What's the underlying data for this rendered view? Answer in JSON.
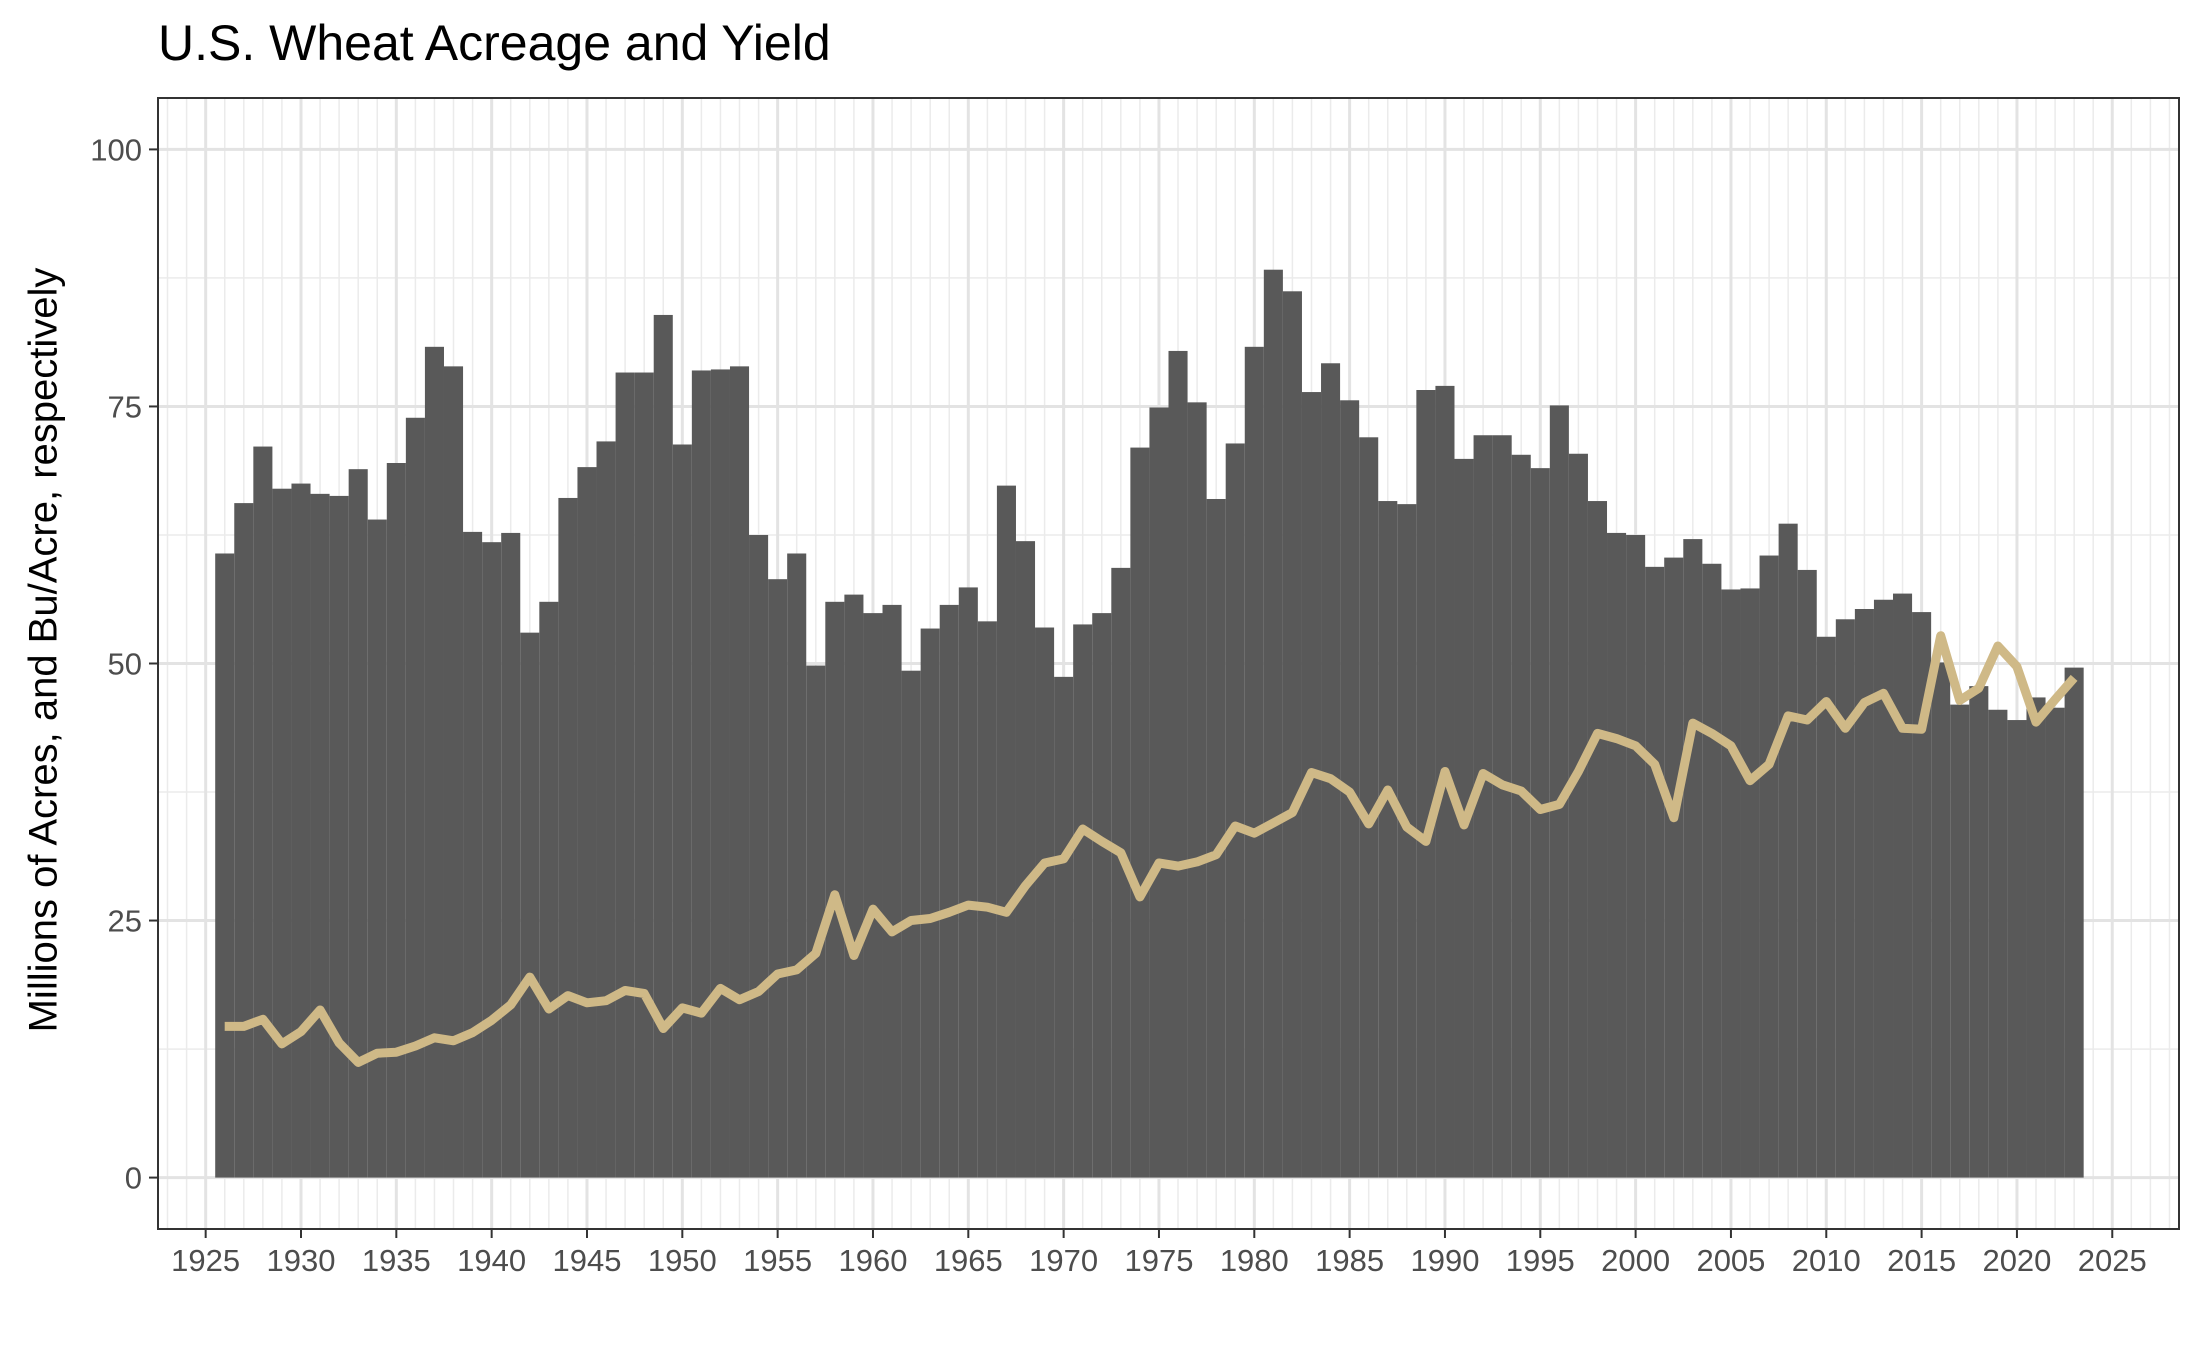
{
  "chart_data": {
    "type": "bar",
    "title": "U.S. Wheat Acreage and Yield",
    "xlabel": "",
    "ylabel": "Millions of Acres, and Bu/Acre, respectively",
    "xlim": [
      1922.5,
      2028.5
    ],
    "ylim": [
      -5,
      105
    ],
    "x_ticks": [
      "1925",
      "1930",
      "1935",
      "1940",
      "1945",
      "1950",
      "1955",
      "1960",
      "1965",
      "1970",
      "1975",
      "1980",
      "1985",
      "1990",
      "1995",
      "2000",
      "2005",
      "2010",
      "2015",
      "2020",
      "2025"
    ],
    "y_ticks": [
      "0",
      "25",
      "50",
      "75",
      "100"
    ],
    "grid": true,
    "legend": "none",
    "years": [
      1926,
      1927,
      1928,
      1929,
      1930,
      1931,
      1932,
      1933,
      1934,
      1935,
      1936,
      1937,
      1938,
      1939,
      1940,
      1941,
      1942,
      1943,
      1944,
      1945,
      1946,
      1947,
      1948,
      1949,
      1950,
      1951,
      1952,
      1953,
      1954,
      1955,
      1956,
      1957,
      1958,
      1959,
      1960,
      1961,
      1962,
      1963,
      1964,
      1965,
      1966,
      1967,
      1968,
      1969,
      1970,
      1971,
      1972,
      1973,
      1974,
      1975,
      1976,
      1977,
      1978,
      1979,
      1980,
      1981,
      1982,
      1983,
      1984,
      1985,
      1986,
      1987,
      1988,
      1989,
      1990,
      1991,
      1992,
      1993,
      1994,
      1995,
      1996,
      1997,
      1998,
      1999,
      2000,
      2001,
      2002,
      2003,
      2004,
      2005,
      2006,
      2007,
      2008,
      2009,
      2010,
      2011,
      2012,
      2013,
      2014,
      2015,
      2016,
      2017,
      2018,
      2019,
      2020,
      2021,
      2022,
      2023
    ],
    "series": [
      {
        "type": "bar",
        "color": "#595959",
        "values": [
          60.7,
          65.6,
          71.1,
          67.0,
          67.5,
          66.5,
          66.3,
          68.9,
          64.0,
          69.5,
          73.9,
          80.8,
          78.9,
          62.8,
          61.8,
          62.7,
          53.0,
          56.0,
          66.1,
          69.1,
          71.6,
          78.3,
          78.3,
          83.9,
          71.3,
          78.5,
          78.6,
          78.9,
          62.5,
          58.2,
          60.7,
          49.8,
          56.0,
          56.7,
          54.9,
          55.7,
          49.3,
          53.4,
          55.7,
          57.4,
          54.1,
          67.3,
          61.9,
          53.5,
          48.7,
          53.8,
          54.9,
          59.3,
          71.0,
          74.9,
          80.4,
          75.4,
          66.0,
          71.4,
          80.8,
          88.3,
          86.2,
          76.4,
          79.2,
          75.6,
          72.0,
          65.8,
          65.5,
          76.6,
          77.0,
          69.9,
          72.2,
          72.2,
          70.3,
          69.0,
          75.1,
          70.4,
          65.8,
          62.7,
          62.5,
          59.4,
          60.3,
          62.1,
          59.7,
          57.2,
          57.3,
          60.5,
          63.6,
          59.1,
          52.6,
          54.3,
          55.3,
          56.2,
          56.8,
          55.0,
          50.1,
          46.0,
          47.8,
          45.5,
          44.5,
          46.7,
          45.7,
          49.6
        ]
      },
      {
        "type": "line",
        "color": "#CFB987",
        "values": [
          14.7,
          14.7,
          15.4,
          13.0,
          14.2,
          16.3,
          13.1,
          11.2,
          12.1,
          12.2,
          12.8,
          13.6,
          13.3,
          14.1,
          15.3,
          16.8,
          19.5,
          16.4,
          17.7,
          17.0,
          17.2,
          18.2,
          17.9,
          14.5,
          16.5,
          16.0,
          18.4,
          17.3,
          18.1,
          19.8,
          20.2,
          21.8,
          27.5,
          21.6,
          26.1,
          23.9,
          25.0,
          25.2,
          25.8,
          26.5,
          26.3,
          25.8,
          28.4,
          30.6,
          31.0,
          33.9,
          32.7,
          31.6,
          27.3,
          30.6,
          30.3,
          30.7,
          31.4,
          34.2,
          33.5,
          34.5,
          35.5,
          39.4,
          38.8,
          37.5,
          34.4,
          37.7,
          34.1,
          32.7,
          39.5,
          34.3,
          39.3,
          38.2,
          37.6,
          35.8,
          36.3,
          39.5,
          43.2,
          42.7,
          42.0,
          40.2,
          35.0,
          44.2,
          43.2,
          42.0,
          38.6,
          40.2,
          44.9,
          44.5,
          46.3,
          43.7,
          46.2,
          47.1,
          43.7,
          43.6,
          52.7,
          46.4,
          47.6,
          51.7,
          49.7,
          44.3,
          46.5,
          48.6
        ]
      }
    ]
  }
}
